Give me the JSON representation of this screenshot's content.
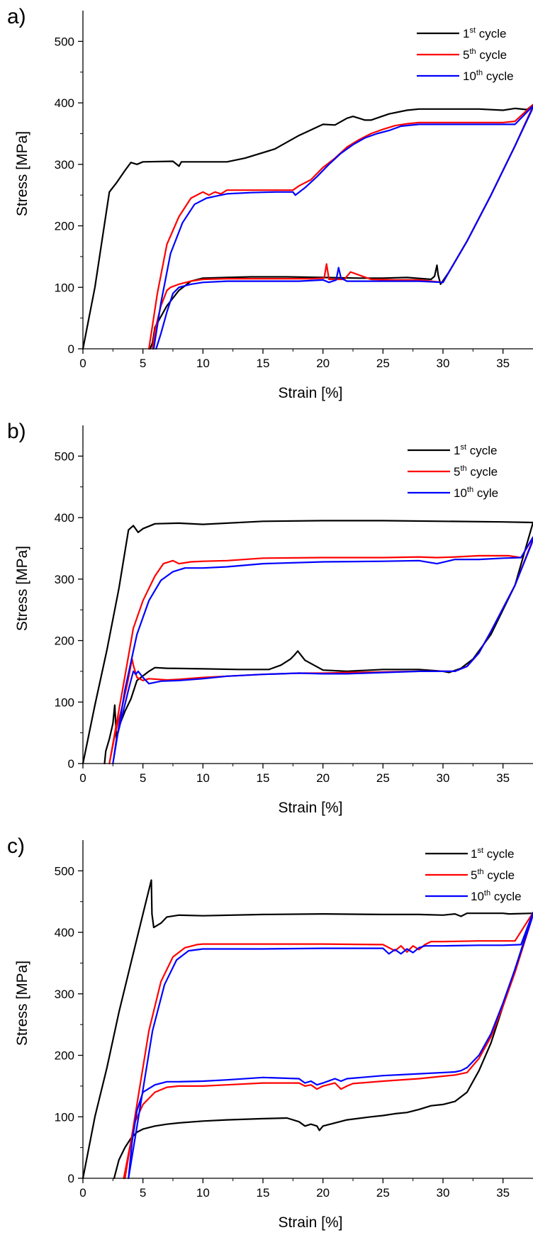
{
  "figure": {
    "colors": {
      "cycle1": "#000000",
      "cycle5": "#ff0000",
      "cycle10": "#0000ff",
      "axis": "#000000",
      "background": "#ffffff"
    }
  },
  "chart_data": [
    {
      "panel": "a)",
      "type": "line",
      "xlabel": "Strain [%]",
      "ylabel": "Stress [MPa]",
      "xlim": [
        0,
        37.5
      ],
      "ylim": [
        0,
        550
      ],
      "xticks": [
        0,
        5,
        10,
        15,
        20,
        25,
        30,
        35
      ],
      "yticks": [
        0,
        100,
        200,
        300,
        400,
        500
      ],
      "grid": false,
      "legend_position": "top-right",
      "series": [
        {
          "name": "1st cycle",
          "legend": {
            "prefix": "1",
            "sup": "st",
            "suffix": " cycle"
          },
          "color": "#000000",
          "x": [
            0,
            1,
            2.2,
            2.8,
            3.5,
            4,
            4.5,
            5,
            7.5,
            8,
            8.2,
            10,
            12,
            13.5,
            16,
            18,
            20,
            21,
            22,
            22.5,
            23.5,
            24,
            25.5,
            27,
            28,
            30,
            33,
            35,
            36,
            37,
            37.5,
            37.4,
            36,
            34,
            32,
            30.5,
            29.8,
            29.6,
            29.5,
            29.3,
            29,
            27,
            25,
            23,
            20,
            17,
            14,
            12,
            10,
            9,
            8,
            7,
            6,
            5.8,
            5.6
          ],
          "y": [
            0,
            100,
            255,
            270,
            290,
            303,
            300,
            304,
            305,
            297,
            304,
            304,
            304,
            310,
            325,
            347,
            365,
            364,
            375,
            378,
            372,
            372,
            382,
            388,
            390,
            390,
            390,
            388,
            391,
            389,
            397,
            390,
            330,
            250,
            175,
            125,
            105,
            120,
            136,
            118,
            113,
            116,
            115,
            115,
            116,
            117,
            117,
            116,
            115,
            110,
            95,
            70,
            35,
            10,
            0
          ]
        },
        {
          "name": "5th cycle",
          "legend": {
            "prefix": "5",
            "sup": "th",
            "suffix": " cycle"
          },
          "color": "#ff0000",
          "x": [
            5.5,
            6.2,
            7,
            8,
            9,
            10,
            10.5,
            11,
            11.5,
            12,
            14,
            16,
            17.5,
            18,
            19,
            20,
            21,
            22,
            23,
            24,
            25,
            26,
            27,
            28,
            30,
            32,
            33.5,
            35,
            36,
            37.5,
            37.4,
            36,
            34,
            32,
            30.5,
            30,
            28,
            26,
            24,
            22.3,
            22,
            21.8,
            20.5,
            20.3,
            20.1,
            19,
            16,
            14,
            12,
            10,
            9,
            8,
            7.3,
            7,
            6.5,
            6,
            5.8
          ],
          "y": [
            0,
            90,
            170,
            215,
            245,
            255,
            250,
            255,
            252,
            258,
            258,
            258,
            258,
            265,
            275,
            295,
            310,
            328,
            340,
            350,
            357,
            363,
            366,
            368,
            368,
            368,
            368,
            368,
            370,
            397,
            390,
            330,
            250,
            175,
            125,
            108,
            112,
            112,
            113,
            125,
            118,
            113,
            113,
            138,
            115,
            114,
            114,
            114,
            114,
            113,
            110,
            105,
            100,
            95,
            70,
            30,
            0
          ]
        },
        {
          "name": "10th cycle",
          "legend": {
            "prefix": "10",
            "sup": "th",
            "suffix": " cycle"
          },
          "color": "#0000ff",
          "x": [
            5.9,
            6.5,
            7.3,
            8.3,
            9.3,
            10.3,
            11,
            12,
            14,
            16,
            17.5,
            17.7,
            18.5,
            19.5,
            20.5,
            21.5,
            22.5,
            23.5,
            24.5,
            25.5,
            26.5,
            28,
            30,
            32,
            34,
            36,
            37.5,
            37.4,
            36,
            34,
            32,
            30.5,
            30,
            28,
            26,
            24,
            22,
            21.5,
            21.3,
            21.1,
            20.5,
            20,
            18,
            16,
            14,
            12,
            10,
            9,
            8,
            7.5,
            7,
            6.5,
            6.1
          ],
          "y": [
            0,
            75,
            155,
            205,
            235,
            245,
            248,
            252,
            254,
            255,
            255,
            250,
            262,
            280,
            300,
            318,
            332,
            343,
            350,
            355,
            362,
            365,
            365,
            365,
            365,
            365,
            395,
            388,
            330,
            250,
            175,
            125,
            108,
            110,
            110,
            110,
            110,
            115,
            132,
            112,
            108,
            112,
            110,
            110,
            110,
            110,
            108,
            105,
            100,
            90,
            60,
            25,
            0
          ]
        }
      ]
    },
    {
      "panel": "b)",
      "type": "line",
      "xlabel": "Strain [%]",
      "ylabel": "Stress [MPa]",
      "xlim": [
        0,
        37.5
      ],
      "ylim": [
        0,
        550
      ],
      "xticks": [
        0,
        5,
        10,
        15,
        20,
        25,
        30,
        35
      ],
      "yticks": [
        0,
        100,
        200,
        300,
        400,
        500
      ],
      "grid": false,
      "legend_position": "top-right",
      "series": [
        {
          "name": "1st cycle",
          "legend": {
            "prefix": "1",
            "sup": "st",
            "suffix": " cycle"
          },
          "color": "#000000",
          "x": [
            0,
            1,
            2,
            3,
            3.8,
            4.2,
            4.6,
            5,
            6,
            8,
            10,
            15,
            20,
            25,
            30,
            35,
            37.5,
            37.4,
            36,
            34,
            32.5,
            31.5,
            30.5,
            30,
            28,
            25,
            22,
            20,
            18.5,
            17.9,
            17.6,
            17.3,
            16.5,
            15.5,
            13,
            10,
            7,
            6,
            5.5,
            4.5,
            4,
            3.5,
            3,
            2.8,
            2.65,
            2.5,
            2.2,
            1.9,
            1.8
          ],
          "y": [
            0,
            95,
            185,
            285,
            380,
            387,
            376,
            382,
            390,
            391,
            389,
            394,
            395,
            395,
            394,
            393,
            392,
            385,
            290,
            210,
            170,
            155,
            148,
            150,
            153,
            153,
            150,
            152,
            168,
            183,
            176,
            170,
            160,
            153,
            153,
            154,
            155,
            156,
            150,
            135,
            105,
            85,
            60,
            40,
            95,
            65,
            40,
            20,
            0
          ]
        },
        {
          "name": "5th cycle",
          "legend": {
            "prefix": "5",
            "sup": "th",
            "suffix": " cycle"
          },
          "color": "#ff0000",
          "x": [
            2.2,
            3.3,
            4.2,
            5,
            6,
            6.7,
            7.5,
            8,
            9,
            10,
            12,
            15,
            20,
            25,
            28,
            29.5,
            31,
            33,
            35.5,
            36.5,
            37.5,
            37.4,
            36,
            34,
            33,
            32,
            31,
            30,
            28,
            25,
            22,
            20,
            18,
            15,
            12,
            10,
            8,
            7,
            5.5,
            5,
            4.5,
            4.2,
            4.1,
            4,
            3.7,
            3.3,
            2.7,
            2.2
          ],
          "y": [
            0,
            120,
            220,
            265,
            305,
            325,
            330,
            325,
            328,
            329,
            330,
            334,
            335,
            335,
            336,
            335,
            336,
            338,
            338,
            335,
            368,
            360,
            290,
            215,
            180,
            158,
            150,
            150,
            150,
            149,
            148,
            147,
            147,
            145,
            142,
            140,
            137,
            136,
            138,
            135,
            140,
            160,
            170,
            160,
            130,
            95,
            50,
            0
          ]
        },
        {
          "name": "10th cyle",
          "legend": {
            "prefix": "10",
            "sup": "th",
            "suffix": " cyle"
          },
          "color": "#0000ff",
          "x": [
            2.5,
            3.5,
            4.5,
            5.5,
            6.5,
            7.5,
            8.5,
            10,
            12,
            15,
            20,
            25,
            28,
            29.5,
            31,
            33,
            35,
            36.5,
            37.5,
            37.4,
            36,
            34,
            33,
            32,
            31,
            30,
            28,
            25,
            22,
            20,
            18,
            15,
            12,
            10,
            8,
            6.5,
            5.5,
            5,
            4.6,
            4.4,
            4.2,
            3.8,
            3.3,
            2.8,
            2.5
          ],
          "y": [
            0,
            120,
            210,
            265,
            298,
            312,
            318,
            318,
            320,
            325,
            328,
            329,
            330,
            325,
            332,
            332,
            334,
            335,
            368,
            358,
            290,
            215,
            180,
            158,
            150,
            150,
            150,
            148,
            146,
            146,
            147,
            145,
            142,
            138,
            135,
            134,
            130,
            140,
            150,
            145,
            150,
            120,
            80,
            40,
            0
          ]
        }
      ]
    },
    {
      "panel": "c)",
      "type": "line",
      "xlabel": "Strain [%]",
      "ylabel": "Stress [MPa]",
      "xlim": [
        0,
        37.5
      ],
      "ylim": [
        0,
        550
      ],
      "xticks": [
        0,
        5,
        10,
        15,
        20,
        25,
        30,
        35
      ],
      "yticks": [
        0,
        100,
        200,
        300,
        400,
        500
      ],
      "grid": false,
      "legend_position": "top-right",
      "series": [
        {
          "name": "1st cycle",
          "legend": {
            "prefix": "1",
            "sup": "st",
            "suffix": " cycle"
          },
          "color": "#000000",
          "x": [
            0,
            1,
            2,
            3,
            4,
            5,
            5.7,
            5.75,
            5.9,
            6.5,
            7,
            8,
            10,
            15,
            20,
            25,
            28,
            30,
            31,
            31.5,
            32,
            33,
            34,
            35,
            35.5,
            37.5,
            37.4,
            36,
            35,
            34,
            33,
            32,
            31,
            30,
            29,
            28,
            27,
            26,
            25,
            24,
            22,
            21,
            20,
            19.7,
            19.5,
            19,
            18.5,
            18,
            17,
            15,
            12,
            10,
            8,
            7,
            6,
            5,
            4.5,
            4,
            3.5,
            3,
            2.6
          ],
          "y": [
            0,
            100,
            180,
            270,
            350,
            430,
            485,
            430,
            408,
            415,
            425,
            428,
            427,
            429,
            430,
            429,
            429,
            428,
            430,
            426,
            431,
            431,
            431,
            431,
            430,
            431,
            425,
            340,
            280,
            220,
            175,
            140,
            125,
            120,
            118,
            112,
            107,
            105,
            102,
            100,
            95,
            90,
            85,
            78,
            85,
            88,
            85,
            92,
            98,
            97,
            95,
            93,
            90,
            88,
            85,
            80,
            75,
            65,
            50,
            30,
            0
          ]
        },
        {
          "name": "5th cycle",
          "legend": {
            "prefix": "5",
            "sup": "th",
            "suffix": " cycle"
          },
          "color": "#ff0000",
          "x": [
            3.5,
            4.5,
            5.5,
            6.5,
            7.5,
            8.5,
            9.5,
            10,
            12,
            15,
            20,
            25,
            26,
            26.5,
            27,
            27.5,
            28,
            28.5,
            29,
            30,
            33,
            35,
            36,
            37.5,
            37.4,
            36,
            35,
            34,
            33,
            32,
            31,
            28,
            25,
            22.5,
            22,
            21.5,
            21,
            20,
            19.5,
            19,
            18.5,
            18,
            15,
            12,
            10,
            8,
            7,
            6,
            5,
            4.3,
            3.8,
            3.4
          ],
          "y": [
            0,
            120,
            240,
            320,
            360,
            375,
            380,
            381,
            381,
            381,
            381,
            380,
            370,
            378,
            368,
            378,
            372,
            380,
            385,
            385,
            386,
            386,
            386,
            432,
            422,
            335,
            280,
            230,
            195,
            172,
            168,
            162,
            158,
            154,
            150,
            145,
            155,
            150,
            145,
            152,
            150,
            155,
            155,
            152,
            150,
            150,
            148,
            140,
            120,
            90,
            40,
            0
          ]
        },
        {
          "name": "10th cycle",
          "legend": {
            "prefix": "10",
            "sup": "th",
            "suffix": " cycle"
          },
          "color": "#0000ff",
          "x": [
            3.8,
            4.8,
            5.8,
            6.8,
            7.8,
            8.8,
            10,
            12,
            15,
            20,
            25,
            25.5,
            26,
            26.5,
            27,
            27.5,
            28,
            28.5,
            30,
            33,
            35,
            36.5,
            37.5,
            37.4,
            36,
            35,
            34,
            33,
            32,
            31.5,
            31,
            28,
            25,
            22,
            21.5,
            21,
            20,
            19.5,
            19,
            18.5,
            18,
            15,
            12,
            10,
            8,
            7,
            6,
            5,
            4.5,
            4.1,
            3.8
          ],
          "y": [
            0,
            120,
            240,
            315,
            355,
            370,
            373,
            373,
            373,
            374,
            374,
            365,
            372,
            365,
            373,
            367,
            375,
            378,
            378,
            379,
            379,
            380,
            432,
            422,
            340,
            285,
            235,
            200,
            180,
            175,
            173,
            170,
            167,
            162,
            158,
            162,
            155,
            152,
            158,
            155,
            162,
            164,
            160,
            158,
            157,
            157,
            152,
            140,
            110,
            60,
            0
          ]
        }
      ]
    }
  ]
}
